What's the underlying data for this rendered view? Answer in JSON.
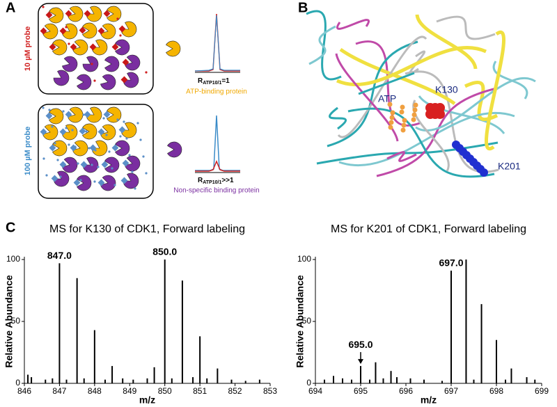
{
  "panel_labels": [
    "A",
    "B",
    "C"
  ],
  "panel_a": {
    "probe_low": "10 µM probe",
    "probe_high": "100 µM probe",
    "ratio_symbol": "R",
    "ratio_sub": "ATP10/1",
    "ratio_low": "=1",
    "ratio_high": ">>1",
    "caption_low": "ATP-binding protein",
    "caption_high": "Non-specific binding protein"
  },
  "panel_b": {
    "labels": [
      "ATP",
      "K130",
      "K201"
    ]
  },
  "chart_data": [
    {
      "type": "stem",
      "title": "MS for K130 of CDK1, Forward labeling",
      "xlabel": "m/z",
      "ylabel": "Relative Abundance",
      "color": "#000000",
      "x": [
        846.1,
        846.2,
        846.6,
        846.8,
        847.0,
        847.2,
        847.5,
        847.7,
        848.0,
        848.3,
        848.5,
        848.8,
        849.1,
        849.5,
        849.7,
        850.0,
        850.2,
        850.5,
        850.8,
        851.0,
        851.2,
        851.5,
        851.9,
        852.3,
        852.7
      ],
      "values": [
        7,
        5,
        3,
        4,
        97,
        3,
        85,
        4,
        43,
        3,
        14,
        4,
        3,
        4,
        13,
        100,
        4,
        83,
        5,
        38,
        4,
        12,
        3,
        2,
        3
      ],
      "xlim": [
        846,
        853
      ],
      "xticks": [
        846,
        847,
        848,
        849,
        850,
        851,
        852,
        853
      ],
      "ylim": [
        0,
        100
      ],
      "yticks": [
        0,
        50,
        100
      ],
      "annotations": [
        {
          "value": 847,
          "label": "847.0"
        },
        {
          "value": 850,
          "label": "850.0"
        }
      ]
    },
    {
      "type": "stem",
      "title": "MS for K201 of CDK1, Forward labeling",
      "xlabel": "m/z",
      "ylabel": "Relative Abundance",
      "color": "#000000",
      "x": [
        694.2,
        694.4,
        694.6,
        694.8,
        695.0,
        695.2,
        695.33,
        695.5,
        695.67,
        695.8,
        696.1,
        696.4,
        696.8,
        697.0,
        697.33,
        697.5,
        697.67,
        698.0,
        698.2,
        698.33,
        698.67,
        698.85
      ],
      "values": [
        3,
        6,
        4,
        3,
        14,
        3,
        17,
        4,
        10,
        5,
        4,
        3,
        2,
        91,
        100,
        3,
        64,
        35,
        3,
        12,
        5,
        3
      ],
      "xlim": [
        694,
        699
      ],
      "xticks": [
        694,
        695,
        696,
        697,
        698,
        699
      ],
      "ylim": [
        0,
        100
      ],
      "yticks": [
        0,
        50,
        100
      ],
      "annotations": [
        {
          "value": 695,
          "label": "695.0",
          "arrow": true
        },
        {
          "value": 697,
          "label": "697.0"
        }
      ]
    }
  ]
}
